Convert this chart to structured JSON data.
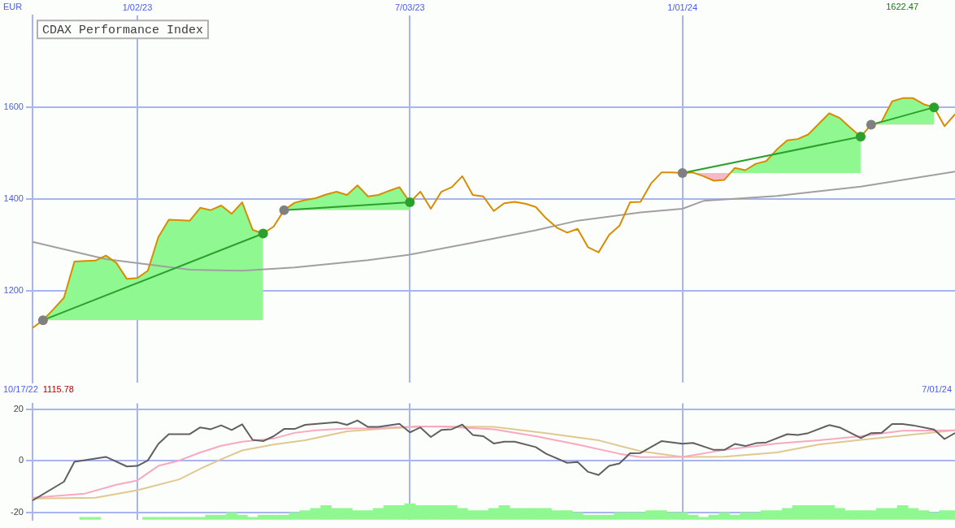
{
  "chart_data": [
    {
      "type": "line",
      "title": "CDAX Performance Index",
      "ylabel": "EUR",
      "annotations": [
        "1622.47",
        "10/17/22",
        "1115.78",
        "7/01/24"
      ],
      "x": [
        "2022-10-24",
        "2022-10-31",
        "2022-11-07",
        "2022-11-14",
        "2022-11-21",
        "2022-11-28",
        "2022-12-05",
        "2022-12-12",
        "2022-12-19",
        "2022-12-26",
        "2023-01-02",
        "2023-01-09",
        "2023-01-16",
        "2023-01-23",
        "2023-01-30",
        "2023-02-06",
        "2023-02-13",
        "2023-02-20",
        "2023-02-27",
        "2023-03-06",
        "2023-03-13",
        "2023-03-20",
        "2023-03-27",
        "2023-04-03",
        "2023-04-10",
        "2023-04-17",
        "2023-04-24",
        "2023-05-01",
        "2023-05-08",
        "2023-05-15",
        "2023-05-22",
        "2023-05-29",
        "2023-06-05",
        "2023-06-12",
        "2023-06-19",
        "2023-06-26",
        "2023-07-03",
        "2023-07-10",
        "2023-07-17",
        "2023-07-24",
        "2023-07-31",
        "2023-08-07",
        "2023-08-14",
        "2023-08-21",
        "2023-08-28",
        "2023-09-04",
        "2023-09-11",
        "2023-09-18",
        "2023-09-25",
        "2023-10-02",
        "2023-10-09",
        "2023-10-16",
        "2023-10-23",
        "2023-10-30",
        "2023-11-06",
        "2023-11-13",
        "2023-11-20",
        "2023-11-27",
        "2023-12-04",
        "2023-12-11",
        "2023-12-18",
        "2023-12-25",
        "2024-01-01",
        "2024-01-08",
        "2024-01-15",
        "2024-01-22",
        "2024-01-29",
        "2024-02-05",
        "2024-02-12",
        "2024-02-19",
        "2024-02-26",
        "2024-03-04",
        "2024-03-11",
        "2024-03-18",
        "2024-03-25",
        "2024-04-01",
        "2024-04-08",
        "2024-04-15",
        "2024-04-22",
        "2024-04-29",
        "2024-05-06",
        "2024-05-13",
        "2024-05-20",
        "2024-05-27",
        "2024-06-03",
        "2024-06-10",
        "2024-06-17",
        "2024-06-24",
        "2024-07-01"
      ],
      "xlim": [
        "2022-10-24",
        "2024-07-01"
      ],
      "xticks": [
        {
          "value": "2023-01-02",
          "label": "1/02/23"
        },
        {
          "value": "2023-07-03",
          "label": "7/03/23"
        },
        {
          "value": "2024-01-01",
          "label": "1/01/24"
        }
      ],
      "ylim": [
        1000,
        1800
      ],
      "yticks": [
        1200,
        1400,
        1600
      ],
      "grid": true,
      "legend": false,
      "marker": "none",
      "series": [
        {
          "color": "#d98c00",
          "lower": [
            null,
            1136,
            1136,
            1136,
            1136,
            1136,
            1136,
            1136,
            1136,
            1136,
            1136,
            1136,
            1136,
            1136,
            1136,
            1136,
            1136,
            1136,
            1136,
            1136,
            1136,
            1136,
            1136,
            null,
            1376,
            1376,
            1376,
            1376,
            1376,
            1376,
            1376,
            1376,
            1376,
            1376,
            1376,
            1376,
            1376,
            null,
            null,
            null,
            null,
            null,
            null,
            null,
            null,
            null,
            null,
            null,
            null,
            null,
            null,
            null,
            null,
            null,
            null,
            null,
            null,
            null,
            null,
            null,
            null,
            null,
            1457,
            1457,
            1457,
            1457,
            1457,
            1457,
            1457,
            1457,
            1457,
            1457,
            1457,
            1457,
            1457,
            1457,
            1457,
            1457,
            1457,
            1457,
            1562,
            1562,
            1562,
            1562,
            1562,
            1562,
            1562,
            null,
            null
          ],
          "upper": [
            null,
            1136,
            1160,
            1185,
            1264,
            1265,
            1266,
            1277,
            1261,
            1226,
            1228,
            1244,
            1317,
            1355,
            1354,
            1353,
            1381,
            1376,
            1386,
            1368,
            1393,
            1333,
            1325,
            null,
            1376,
            1392,
            1398,
            1402,
            1410,
            1416,
            1409,
            1430,
            1406,
            1409,
            1418,
            1426,
            1393,
            null,
            null,
            null,
            null,
            null,
            null,
            null,
            null,
            null,
            null,
            null,
            null,
            null,
            null,
            null,
            null,
            null,
            null,
            null,
            null,
            null,
            null,
            null,
            null,
            null,
            1457,
            1458,
            1450,
            1440,
            1442,
            1468,
            1463,
            1477,
            1483,
            1508,
            1528,
            1531,
            1541,
            1564,
            1587,
            1577,
            1556,
            1536,
            1562,
            1569,
            1613,
            1620,
            1620,
            1607,
            1600,
            null,
            null
          ],
          "values": [
            1119,
            1136,
            1160,
            1185,
            1264,
            1265,
            1266,
            1277,
            1261,
            1226,
            1228,
            1244,
            1317,
            1355,
            1354,
            1353,
            1381,
            1376,
            1386,
            1368,
            1393,
            1333,
            1325,
            1340,
            1376,
            1392,
            1398,
            1402,
            1410,
            1416,
            1409,
            1430,
            1406,
            1409,
            1418,
            1426,
            1393,
            1416,
            1379,
            1416,
            1426,
            1450,
            1409,
            1406,
            1374,
            1391,
            1394,
            1390,
            1383,
            1358,
            1338,
            1327,
            1335,
            1295,
            1284,
            1322,
            1342,
            1393,
            1394,
            1434,
            1458,
            1458,
            1457,
            1458,
            1450,
            1440,
            1442,
            1468,
            1463,
            1477,
            1483,
            1508,
            1528,
            1531,
            1541,
            1564,
            1587,
            1577,
            1556,
            1536,
            1562,
            1569,
            1613,
            1620,
            1620,
            1607,
            1600,
            1559,
            1585
          ]
        },
        {
          "color": "#a0a0a0",
          "x": [
            "2022-10-24",
            "2022-12-12",
            "2023-02-06",
            "2023-03-13",
            "2023-04-17",
            "2023-06-05",
            "2023-07-03",
            "2023-08-14",
            "2023-09-25",
            "2023-10-23",
            "2023-12-04",
            "2024-01-01",
            "2024-01-15",
            "2024-03-04",
            "2024-04-29",
            "2024-07-01"
          ],
          "values": [
            1307,
            1269,
            1246,
            1244,
            1251,
            1267,
            1279,
            1305,
            1332,
            1353,
            1371,
            1379,
            1396,
            1407,
            1427,
            1460
          ]
        },
        {
          "marker": "circle",
          "color": "#2ca02c",
          "colors": [
            "#808080",
            "#2ca02c"
          ],
          "x": [
            "2022-10-31",
            "2023-03-27"
          ],
          "values": [
            1136,
            1325
          ]
        },
        {
          "marker": "circle",
          "color": "#2ca02c",
          "colors": [
            "#808080",
            "#2ca02c"
          ],
          "x": [
            "2023-04-10",
            "2023-07-03"
          ],
          "values": [
            1376,
            1393
          ]
        },
        {
          "marker": "circle",
          "color": "#2ca02c",
          "colors": [
            "#808080",
            "#2ca02c"
          ],
          "x": [
            "2024-01-01",
            "2024-04-29"
          ],
          "values": [
            1457,
            1536
          ]
        },
        {
          "marker": "circle",
          "color": "#2ca02c",
          "colors": [
            "#808080",
            "#2ca02c"
          ],
          "x": [
            "2024-05-06",
            "2024-06-17"
          ],
          "values": [
            1562,
            1600
          ]
        }
      ]
    },
    {
      "type": "line",
      "xlim": [
        "2022-10-24",
        "2024-07-01"
      ],
      "xticks": [
        {
          "value": "2023-01-02",
          "label": null
        },
        {
          "value": "2023-07-03",
          "label": null
        },
        {
          "value": "2024-01-01",
          "label": null
        }
      ],
      "ylim": [
        -23,
        22.2
      ],
      "yticks": [
        -20,
        0,
        20
      ],
      "grid": true,
      "legend": false,
      "marker": "none",
      "tick_labels": "y",
      "series": [
        {
          "type": "bar",
          "color": "#90f890",
          "x": [
            "2022-11-28",
            "2022-12-05",
            "2023-01-09",
            "2023-01-16",
            "2023-01-23",
            "2023-01-30",
            "2023-02-06",
            "2023-02-13",
            "2023-02-20",
            "2023-02-27",
            "2023-03-06",
            "2023-03-13",
            "2023-03-20",
            "2023-03-27",
            "2023-04-03",
            "2023-04-10",
            "2023-04-17",
            "2023-04-24",
            "2023-05-01",
            "2023-05-08",
            "2023-05-15",
            "2023-05-22",
            "2023-05-29",
            "2023-06-05",
            "2023-06-12",
            "2023-06-19",
            "2023-06-26",
            "2023-07-03",
            "2023-07-10",
            "2023-07-17",
            "2023-07-24",
            "2023-07-31",
            "2023-08-07",
            "2023-08-14",
            "2023-08-21",
            "2023-08-28",
            "2023-09-04",
            "2023-09-11",
            "2023-09-18",
            "2023-09-25",
            "2023-10-02",
            "2023-10-09",
            "2023-10-16",
            "2023-10-23",
            "2023-10-30",
            "2023-11-06",
            "2023-11-13",
            "2023-11-20",
            "2023-11-27",
            "2023-12-04",
            "2023-12-11",
            "2023-12-18",
            "2023-12-25",
            "2024-01-01",
            "2024-01-08",
            "2024-01-15",
            "2024-01-22",
            "2024-01-29",
            "2024-02-05",
            "2024-02-12",
            "2024-02-19",
            "2024-02-26",
            "2024-03-04",
            "2024-03-11",
            "2024-03-18",
            "2024-03-25",
            "2024-04-01",
            "2024-04-08",
            "2024-04-15",
            "2024-04-22",
            "2024-04-29",
            "2024-05-06",
            "2024-05-13",
            "2024-05-20",
            "2024-05-27",
            "2024-06-03",
            "2024-06-10",
            "2024-06-17",
            "2024-06-24",
            "2024-07-01"
          ],
          "base": [
            -22.7,
            -22.7,
            -22.7,
            -22.7,
            -22.7,
            -22.7,
            -22.7,
            -22.7,
            -22.7,
            -22.7,
            -22.7,
            -22.7,
            -22.7,
            -22.7,
            -22.7,
            -22.7,
            -22.7,
            -22.7,
            -22.7,
            -22.7,
            -22.7,
            -22.7,
            -22.7,
            -22.7,
            -22.7,
            -22.7,
            -22.7,
            -22.7,
            -22.7,
            -22.7,
            -22.7,
            -22.7,
            -22.7,
            -22.7,
            -22.7,
            -22.7,
            -22.7,
            -22.7,
            -22.7,
            -22.7,
            -22.7,
            -22.7,
            -22.7,
            -22.7,
            -22.7,
            -22.7,
            -22.7,
            -22.7,
            -22.7,
            -22.7,
            -22.7,
            -22.7,
            -22.7,
            -22.7,
            -22.7,
            -22.7,
            -22.7,
            -22.7,
            -22.7,
            -22.7,
            -22.7,
            -22.7,
            -22.7,
            -22.7,
            -22.7,
            -22.7,
            -22.7,
            -22.7,
            -22.7,
            -22.7,
            -22.7,
            -22.7,
            -22.7,
            -22.7,
            -22.7,
            -22.7,
            -22.7,
            -22.7,
            -22.7,
            -22.7
          ],
          "values": [
            0.8,
            0.8,
            0.8,
            0.8,
            0.8,
            0.8,
            0.8,
            0.8,
            1.7,
            1.7,
            2.6,
            1.7,
            0.8,
            1.7,
            1.7,
            1.7,
            2.6,
            3.4,
            4.3,
            5.4,
            4.3,
            4.3,
            3.4,
            3.4,
            4.3,
            5.4,
            5.4,
            6.1,
            5.4,
            5.4,
            5.4,
            5.4,
            4.3,
            3.4,
            3.4,
            4.3,
            5.4,
            4.3,
            4.3,
            4.3,
            4.3,
            3.4,
            3.4,
            2.6,
            1.7,
            1.7,
            1.7,
            2.6,
            2.6,
            2.6,
            3.4,
            3.4,
            2.6,
            2.6,
            1.7,
            0.8,
            1.7,
            2.6,
            1.7,
            2.6,
            2.6,
            3.4,
            3.4,
            4.3,
            5.4,
            5.4,
            5.4,
            5.4,
            4.3,
            3.4,
            3.4,
            3.4,
            4.3,
            4.3,
            5.4,
            4.3,
            3.4,
            2.6,
            3.4,
            3.4
          ]
        },
        {
          "color": "#606060",
          "x": [
            "2022-10-24",
            "2022-11-14",
            "2022-11-21",
            "2022-12-12",
            "2022-12-26",
            "2023-01-02",
            "2023-01-09",
            "2023-01-16",
            "2023-01-23",
            "2023-02-06",
            "2023-02-13",
            "2023-02-20",
            "2023-02-27",
            "2023-03-06",
            "2023-03-13",
            "2023-03-20",
            "2023-03-27",
            "2023-04-03",
            "2023-04-10",
            "2023-04-17",
            "2023-04-24",
            "2023-05-15",
            "2023-05-22",
            "2023-05-29",
            "2023-06-05",
            "2023-06-12",
            "2023-06-26",
            "2023-07-03",
            "2023-07-10",
            "2023-07-17",
            "2023-07-24",
            "2023-07-31",
            "2023-08-07",
            "2023-08-14",
            "2023-08-21",
            "2023-08-28",
            "2023-09-04",
            "2023-09-11",
            "2023-09-25",
            "2023-10-02",
            "2023-10-16",
            "2023-10-23",
            "2023-10-30",
            "2023-11-06",
            "2023-11-13",
            "2023-11-20",
            "2023-11-27",
            "2023-12-04",
            "2023-12-18",
            "2024-01-01",
            "2024-01-08",
            "2024-01-22",
            "2024-01-29",
            "2024-02-05",
            "2024-02-12",
            "2024-02-19",
            "2024-02-26",
            "2024-03-11",
            "2024-03-18",
            "2024-03-25",
            "2024-04-08",
            "2024-04-15",
            "2024-04-29",
            "2024-05-06",
            "2024-05-13",
            "2024-05-20",
            "2024-05-27",
            "2024-06-03",
            "2024-06-17",
            "2024-06-24",
            "2024-07-01"
          ],
          "values": [
            -15.4,
            -8.1,
            -0.4,
            1.5,
            -2.2,
            -2.0,
            0.1,
            6.5,
            10.3,
            10.3,
            12.9,
            12.2,
            13.7,
            11.9,
            14.1,
            8.1,
            7.6,
            9.5,
            12.3,
            12.3,
            13.9,
            14.9,
            13.9,
            15.6,
            13.1,
            13.1,
            14.3,
            11.0,
            12.9,
            9.2,
            11.9,
            12.2,
            14.0,
            10.0,
            9.5,
            6.7,
            7.4,
            7.4,
            5.3,
            2.7,
            -0.8,
            -0.5,
            -4.3,
            -5.5,
            -2.0,
            -1.0,
            2.9,
            3.0,
            7.6,
            6.6,
            6.9,
            4.2,
            4.2,
            6.5,
            5.7,
            6.8,
            7.1,
            10.3,
            10.0,
            10.7,
            13.8,
            12.9,
            8.8,
            10.7,
            10.8,
            14.2,
            14.2,
            13.7,
            12.1,
            8.4,
            10.7
          ]
        },
        {
          "color": "#f8a8c0",
          "x": [
            "2022-10-24",
            "2022-11-28",
            "2022-12-19",
            "2023-01-02",
            "2023-01-16",
            "2023-01-30",
            "2023-02-13",
            "2023-02-27",
            "2023-03-13",
            "2023-04-03",
            "2023-04-17",
            "2023-05-01",
            "2023-05-22",
            "2023-06-05",
            "2023-07-10",
            "2023-07-24",
            "2023-08-28",
            "2023-09-25",
            "2023-10-23",
            "2023-11-20",
            "2023-12-04",
            "2024-01-01",
            "2024-01-29",
            "2024-03-04",
            "2024-04-01",
            "2024-04-29",
            "2024-05-27",
            "2024-07-01"
          ],
          "values": [
            -14.3,
            -12.7,
            -9.3,
            -7.6,
            -2.0,
            0.1,
            3.2,
            5.8,
            7.4,
            8.6,
            10.8,
            11.8,
            12.5,
            12.6,
            13.3,
            13.3,
            12.2,
            9.5,
            6.3,
            2.7,
            1.4,
            1.5,
            4.2,
            6.7,
            7.9,
            9.5,
            11.6,
            11.8
          ]
        },
        {
          "color": "#e0c890",
          "x": [
            "2022-10-24",
            "2022-12-05",
            "2023-01-02",
            "2023-01-30",
            "2023-02-13",
            "2023-02-27",
            "2023-03-13",
            "2023-04-03",
            "2023-04-24",
            "2023-05-22",
            "2023-06-19",
            "2023-07-17",
            "2023-08-28",
            "2023-10-02",
            "2023-11-06",
            "2023-12-04",
            "2024-01-01",
            "2024-01-29",
            "2024-03-04",
            "2024-04-01",
            "2024-04-29",
            "2024-05-27",
            "2024-07-01"
          ],
          "values": [
            -14.6,
            -14.3,
            -11.4,
            -7.2,
            -3.1,
            0.6,
            4.0,
            6.3,
            7.9,
            11.4,
            12.6,
            13.3,
            13.1,
            10.7,
            7.9,
            3.7,
            1.5,
            1.6,
            3.2,
            6.3,
            8.1,
            9.7,
            11.8
          ]
        }
      ]
    }
  ]
}
